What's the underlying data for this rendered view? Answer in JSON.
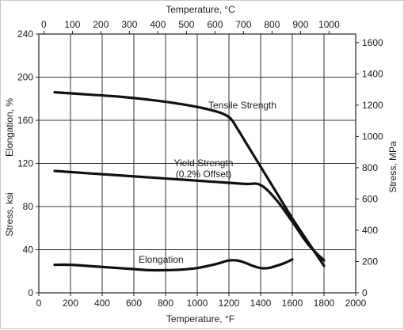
{
  "chart_data": {
    "type": "line",
    "title": "",
    "axes": {
      "bottom": {
        "label": "Temperature, °F",
        "range": [
          0,
          2000
        ],
        "ticks": [
          0,
          200,
          400,
          600,
          800,
          1000,
          1200,
          1400,
          1600,
          1800,
          2000
        ]
      },
      "top": {
        "label": "Temperature, °C",
        "ticks": [
          0,
          100,
          200,
          300,
          400,
          500,
          600,
          700,
          800,
          900,
          1000
        ]
      },
      "left": {
        "label_upper": "Elongation, %",
        "label_lower": "Stress, ksi",
        "range": [
          0,
          240
        ],
        "ticks": [
          0,
          40,
          80,
          120,
          160,
          200,
          240
        ]
      },
      "right": {
        "label": "Stress, MPa",
        "ticks": [
          0,
          200,
          400,
          600,
          800,
          1000,
          1200,
          1400,
          1600
        ]
      }
    },
    "grid": true,
    "series": [
      {
        "name": "Tensile Strength",
        "x": [
          100,
          300,
          500,
          700,
          900,
          1100,
          1200,
          1250,
          1300,
          1400,
          1500,
          1600,
          1700,
          1800
        ],
        "y": [
          186,
          184,
          182,
          179,
          175,
          169,
          163,
          153,
          141,
          117,
          93,
          69,
          47,
          25
        ]
      },
      {
        "name": "Yield Strength\n(0.2% Offset)",
        "x": [
          100,
          300,
          500,
          700,
          900,
          1100,
          1300,
          1400,
          1500,
          1600,
          1700,
          1800
        ],
        "y": [
          113,
          111,
          109,
          107,
          105,
          103,
          101,
          100,
          86,
          66,
          45,
          30
        ]
      },
      {
        "name": "Elongation",
        "x": [
          100,
          200,
          300,
          400,
          500,
          600,
          700,
          800,
          900,
          1000,
          1100,
          1150,
          1200,
          1250,
          1300,
          1350,
          1400,
          1450,
          1500,
          1550,
          1600
        ],
        "y": [
          26,
          26,
          25,
          24,
          23,
          22,
          21,
          21,
          21.5,
          23,
          26,
          28,
          30,
          30,
          28,
          25,
          23,
          23,
          25,
          27.5,
          31
        ]
      }
    ]
  }
}
